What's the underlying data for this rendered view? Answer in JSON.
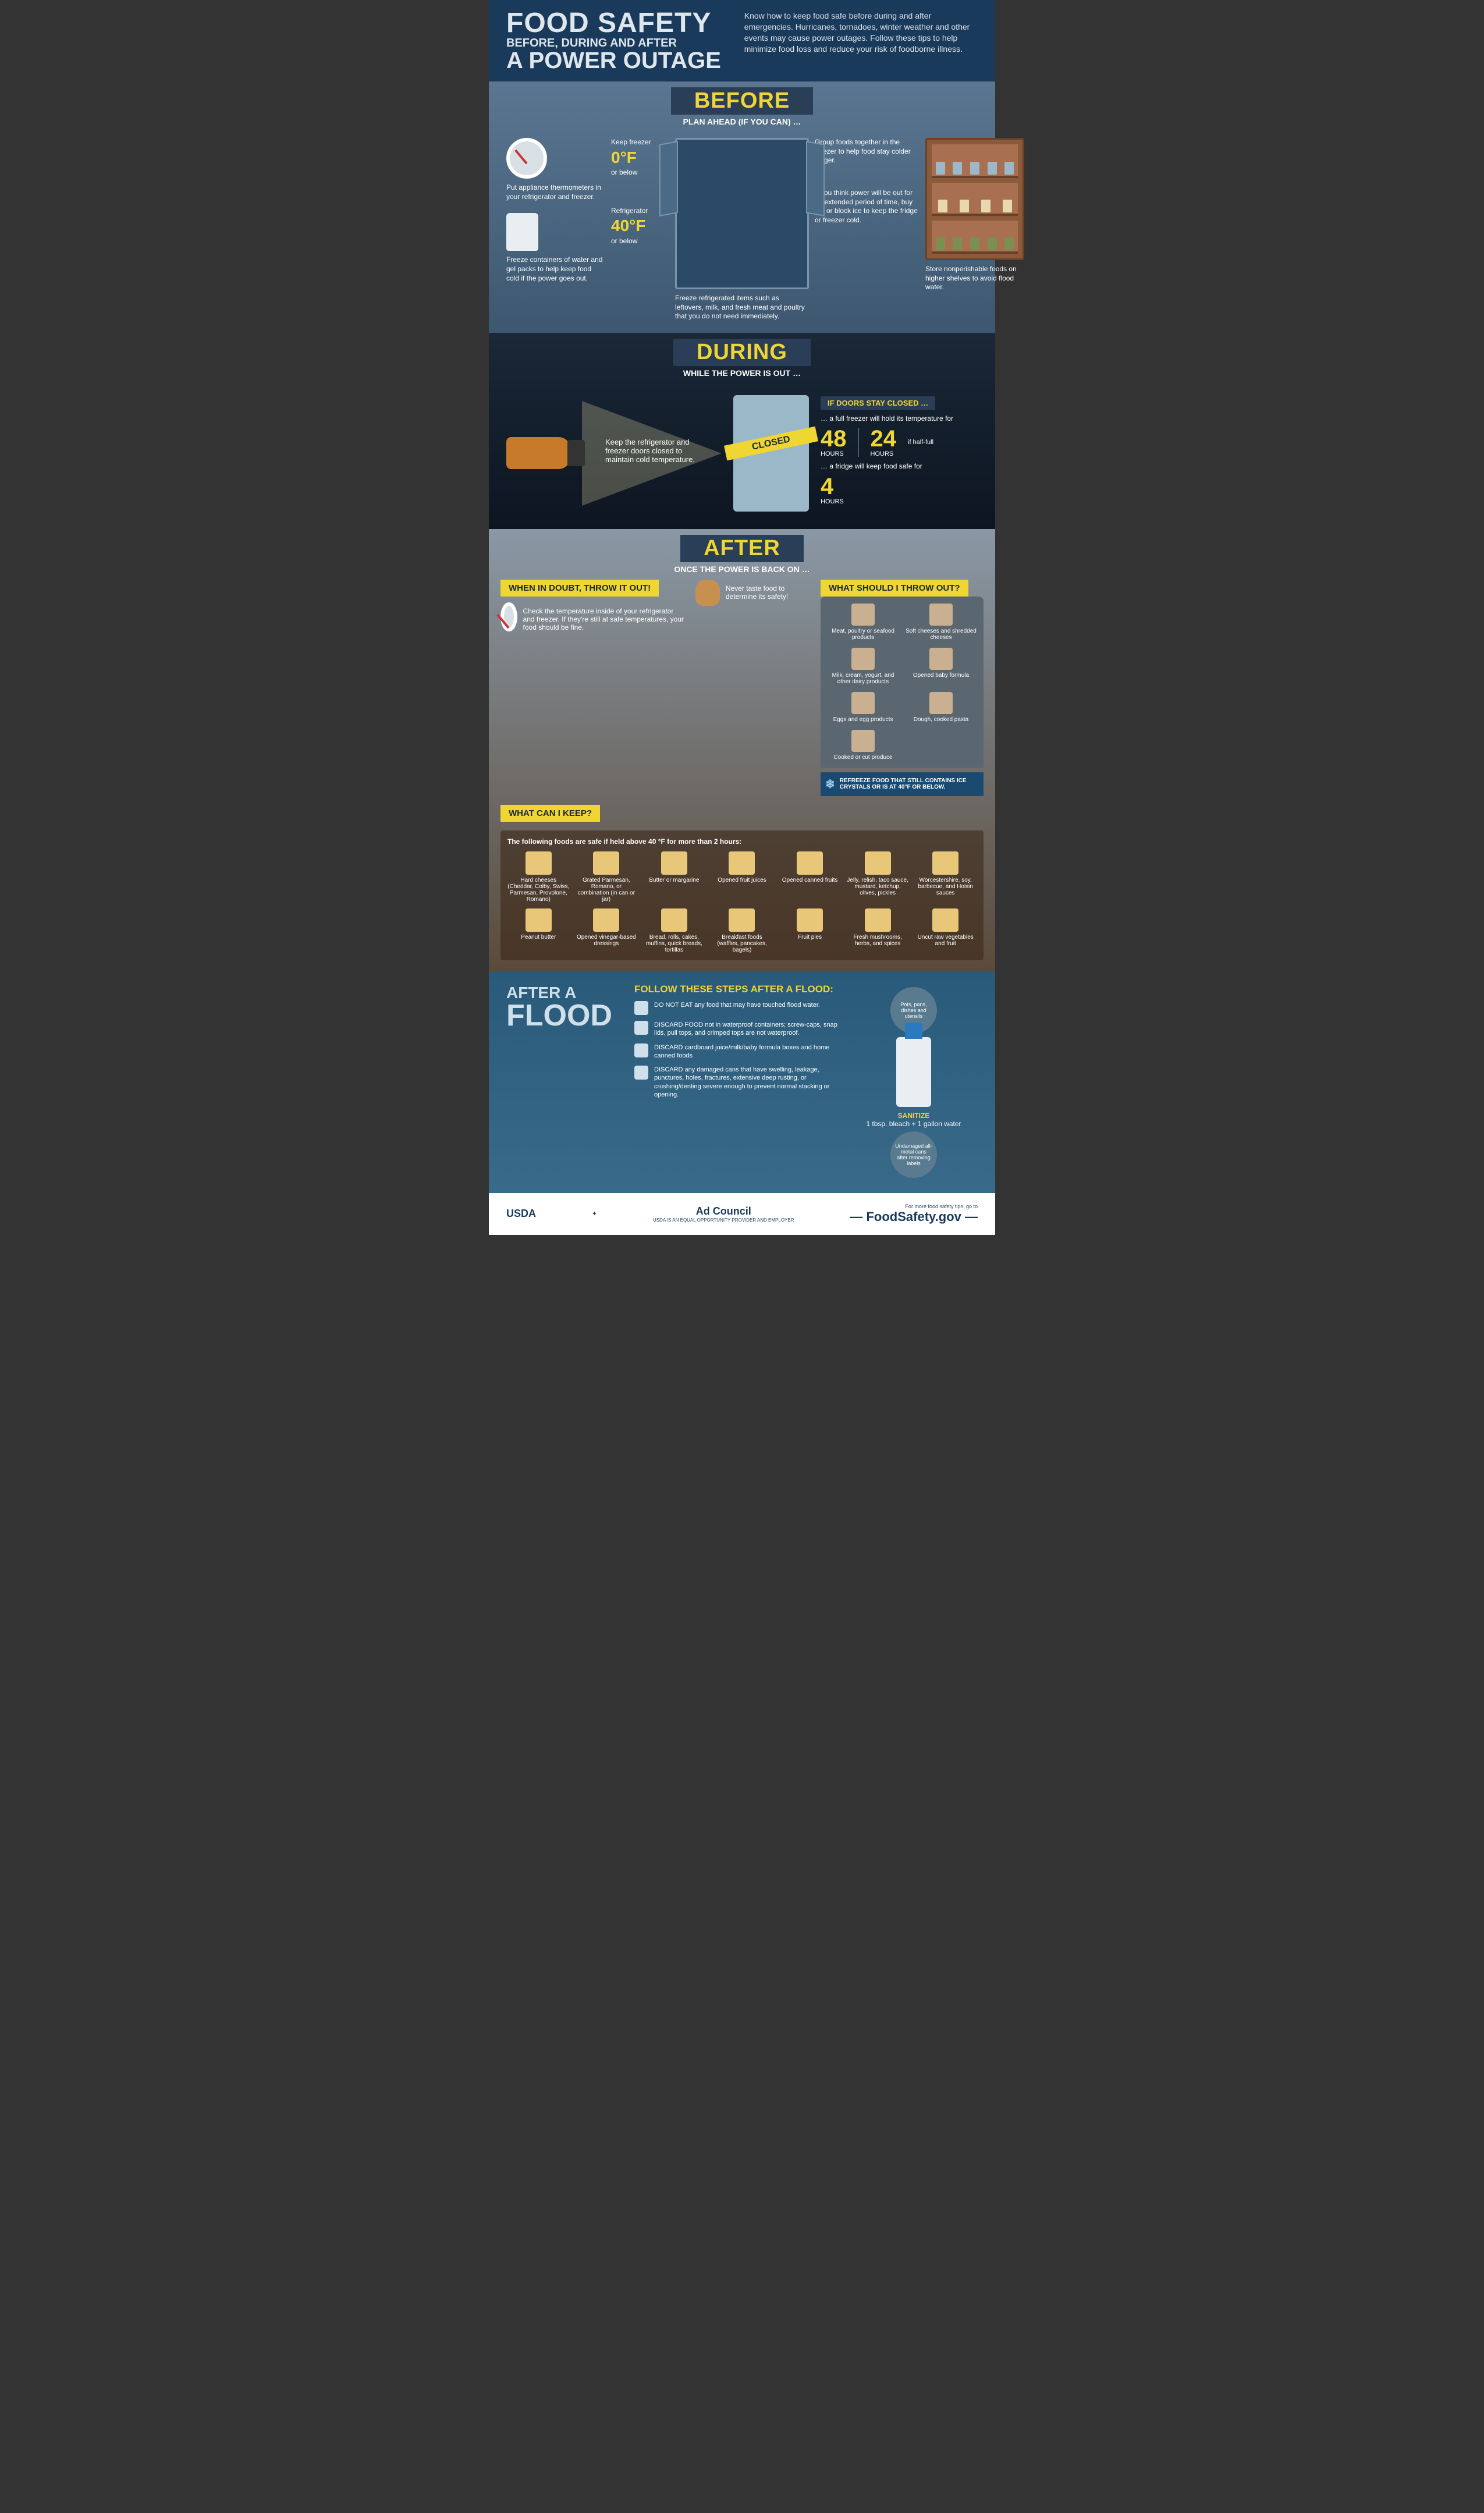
{
  "header": {
    "title1": "FOOD SAFETY",
    "title2": "BEFORE, DURING AND AFTER",
    "title3": "A POWER OUTAGE",
    "intro": "Know how to keep food safe before during and after emergencies. Hurricanes, tornadoes, winter weather and other events may cause power outages. Follow these tips to help minimize food loss and reduce your risk of foodborne illness."
  },
  "before": {
    "heading": "BEFORE",
    "sub": "PLAN AHEAD (IF YOU CAN) …",
    "tips": {
      "thermo": "Put appliance thermometers in your refrigerator and freezer.",
      "freeze_water": "Freeze containers of water and gel packs to help keep food cold if the power goes out.",
      "freezer_label": "Keep freezer",
      "freezer_temp": "0°F",
      "freezer_below": "or below",
      "fridge_label": "Refrigerator",
      "fridge_temp": "40°F",
      "fridge_below": "or below",
      "freeze_items": "Freeze refrigerated items such as leftovers, milk, and fresh meat and poultry that you do not need immediately.",
      "group": "Group foods together in the freezer to help food stay colder longer.",
      "dry_ice": "If you think power will be out for an extended period of time, buy dry or block ice to keep the fridge or freezer cold.",
      "shelves": "Store nonperishable foods on higher shelves to avoid flood water."
    }
  },
  "during": {
    "heading": "DURING",
    "sub": "WHILE THE POWER IS OUT …",
    "keep_closed": "Keep the refrigerator and freezer doors closed to maintain cold temperature.",
    "closed": "CLOSED",
    "doors_banner": "IF DOORS STAY CLOSED …",
    "freezer_full_pre": "… a full freezer will hold its temperature for",
    "h48": "48",
    "h24": "24",
    "hours": "HOURS",
    "half": "if half-full",
    "fridge_pre": "… a fridge will keep food safe for",
    "h4": "4"
  },
  "after": {
    "heading": "AFTER",
    "sub": "ONCE THE POWER IS BACK ON …",
    "doubt": "WHEN IN DOUBT, THROW IT OUT!",
    "check": "Check the temperature inside of your refrigerator and freezer. If they're still at safe temperatures, your food should be fine.",
    "never": "Never taste food to determine its safety!",
    "throw_banner": "WHAT SHOULD I THROW OUT?",
    "throw_items": [
      "Meat, poultry or seafood products",
      "Soft cheeses and shredded cheeses",
      "Milk, cream, yogurt, and other dairy products",
      "Opened baby formula",
      "Eggs and egg products",
      "Dough, cooked pasta",
      "Cooked or cut produce"
    ],
    "keep_banner": "WHAT CAN I KEEP?",
    "keep_intro": "The following foods are safe if held above 40 °F for more than 2 hours:",
    "keep_items": [
      "Hard cheeses (Cheddar, Colby, Swiss, Parmesan, Provolone, Romano)",
      "Grated Parmesan, Romano, or combination (in can or jar)",
      "Butter or margarine",
      "Opened fruit juices",
      "Opened canned fruits",
      "Jelly, relish, taco sauce, mustard, ketchup, olives, pickles",
      "Worcestershire, soy, barbecue, and Hoisin sauces",
      "Peanut butter",
      "Opened vinegar-based dressings",
      "Bread, rolls, cakes, muffins, quick breads, tortillas",
      "Breakfast foods (waffles, pancakes, bagels)",
      "Fruit pies",
      "Fresh mushrooms, herbs, and spices",
      "Uncut raw vegetables and fruit"
    ],
    "refreeze": "REFREEZE FOOD THAT STILL CONTAINS ICE CRYSTALS OR IS AT 40°F OR BELOW."
  },
  "flood": {
    "l1": "AFTER A",
    "l2": "FLOOD",
    "steps_title": "FOLLOW THESE STEPS AFTER A FLOOD:",
    "steps": [
      "DO NOT EAT any food that may have touched flood water.",
      "DISCARD FOOD not in waterproof containers; screw-caps, snap lids, pull tops, and crimped tops are not waterproof.",
      "DISCARD cardboard juice/milk/baby formula boxes and home canned foods",
      "DISCARD any damaged cans that have swelling, leakage, punctures, holes, fractures, extensive deep rusting, or crushing/denting severe enough to prevent normal stacking or opening."
    ],
    "sanitize_title": "SANITIZE",
    "sanitize_mix": "1 tbsp. bleach + 1 gallon water",
    "bubble1": "Pots, pans, dishes and utensils",
    "bubble2": "Undamaged all-metal cans after removing labels"
  },
  "footer": {
    "usda": "USDA",
    "ad": "Ad Council",
    "eoe": "USDA IS AN EQUAL OPPORTUNITY PROVIDER AND EMPLOYER",
    "more": "For more food safety tips, go to",
    "site": "FoodSafety.gov"
  }
}
